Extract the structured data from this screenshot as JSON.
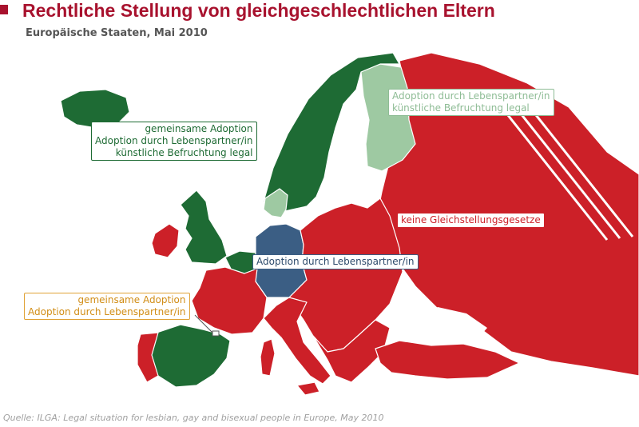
{
  "header": {
    "title": "Rechtliche Stellung von gleichgeschlechtlichen Eltern",
    "subtitle": "Europäische Staaten, Mai 2010"
  },
  "colors": {
    "accent": "#a8122e",
    "green_full": "#1e6b34",
    "green_light": "#9ec9a2",
    "red_none": "#cc2028",
    "blue_partner_adoption": "#3b5e84",
    "orange_callout": "#e0a236",
    "background": "#ffffff"
  },
  "legend_labels": {
    "full_rights": {
      "lines": [
        "gemeinsame Adoption",
        "Adoption durch Lebenspartner/in",
        "künstliche Befruchtung legal"
      ]
    },
    "partner_and_insemination": {
      "lines": [
        "Adoption durch Lebenspartner/in",
        "künstliche Befruchtung legal"
      ]
    },
    "no_equality": {
      "lines": [
        "keine Gleichstellungsgesetze"
      ]
    },
    "partner_adoption": {
      "lines": [
        "Adoption durch Lebenspartner/in"
      ]
    },
    "joint_and_partner": {
      "lines": [
        "gemeinsame Adoption",
        "Adoption durch Lebenspartner/in"
      ]
    }
  },
  "source": "Quelle: ILGA: Legal situation for lesbian, gay and bisexual people in Europe, May 2010"
}
